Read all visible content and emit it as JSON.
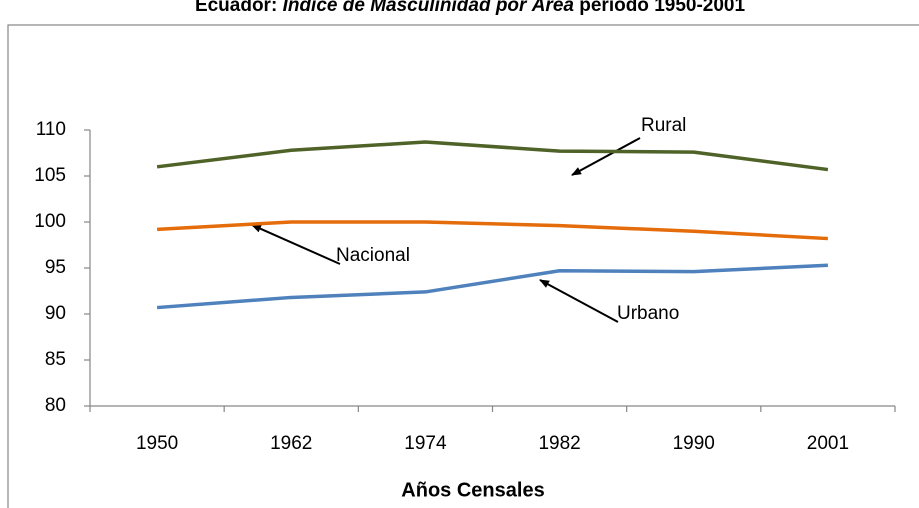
{
  "chart_data": {
    "type": "line",
    "title": [
      "Ecuador: ",
      "Índice de Masculinidad por Área",
      " periodo 1950-2001"
    ],
    "x_label": "Años Censales",
    "categories": [
      "1950",
      "1962",
      "1974",
      "1982",
      "1990",
      "2001"
    ],
    "series": [
      {
        "name": "Rural",
        "color": "#4f6228",
        "values": [
          106.0,
          107.8,
          108.7,
          107.7,
          107.6,
          105.7
        ]
      },
      {
        "name": "Nacional",
        "color": "#e46c0a",
        "values": [
          99.2,
          100.0,
          100.0,
          99.6,
          99.0,
          98.2
        ]
      },
      {
        "name": "Urbano",
        "color": "#4f81bd",
        "values": [
          90.7,
          91.8,
          92.4,
          94.7,
          94.6,
          95.3
        ]
      }
    ],
    "ylim": [
      80,
      110
    ],
    "yticks": [
      80,
      85,
      90,
      95,
      100,
      105,
      110
    ],
    "grid": false
  }
}
